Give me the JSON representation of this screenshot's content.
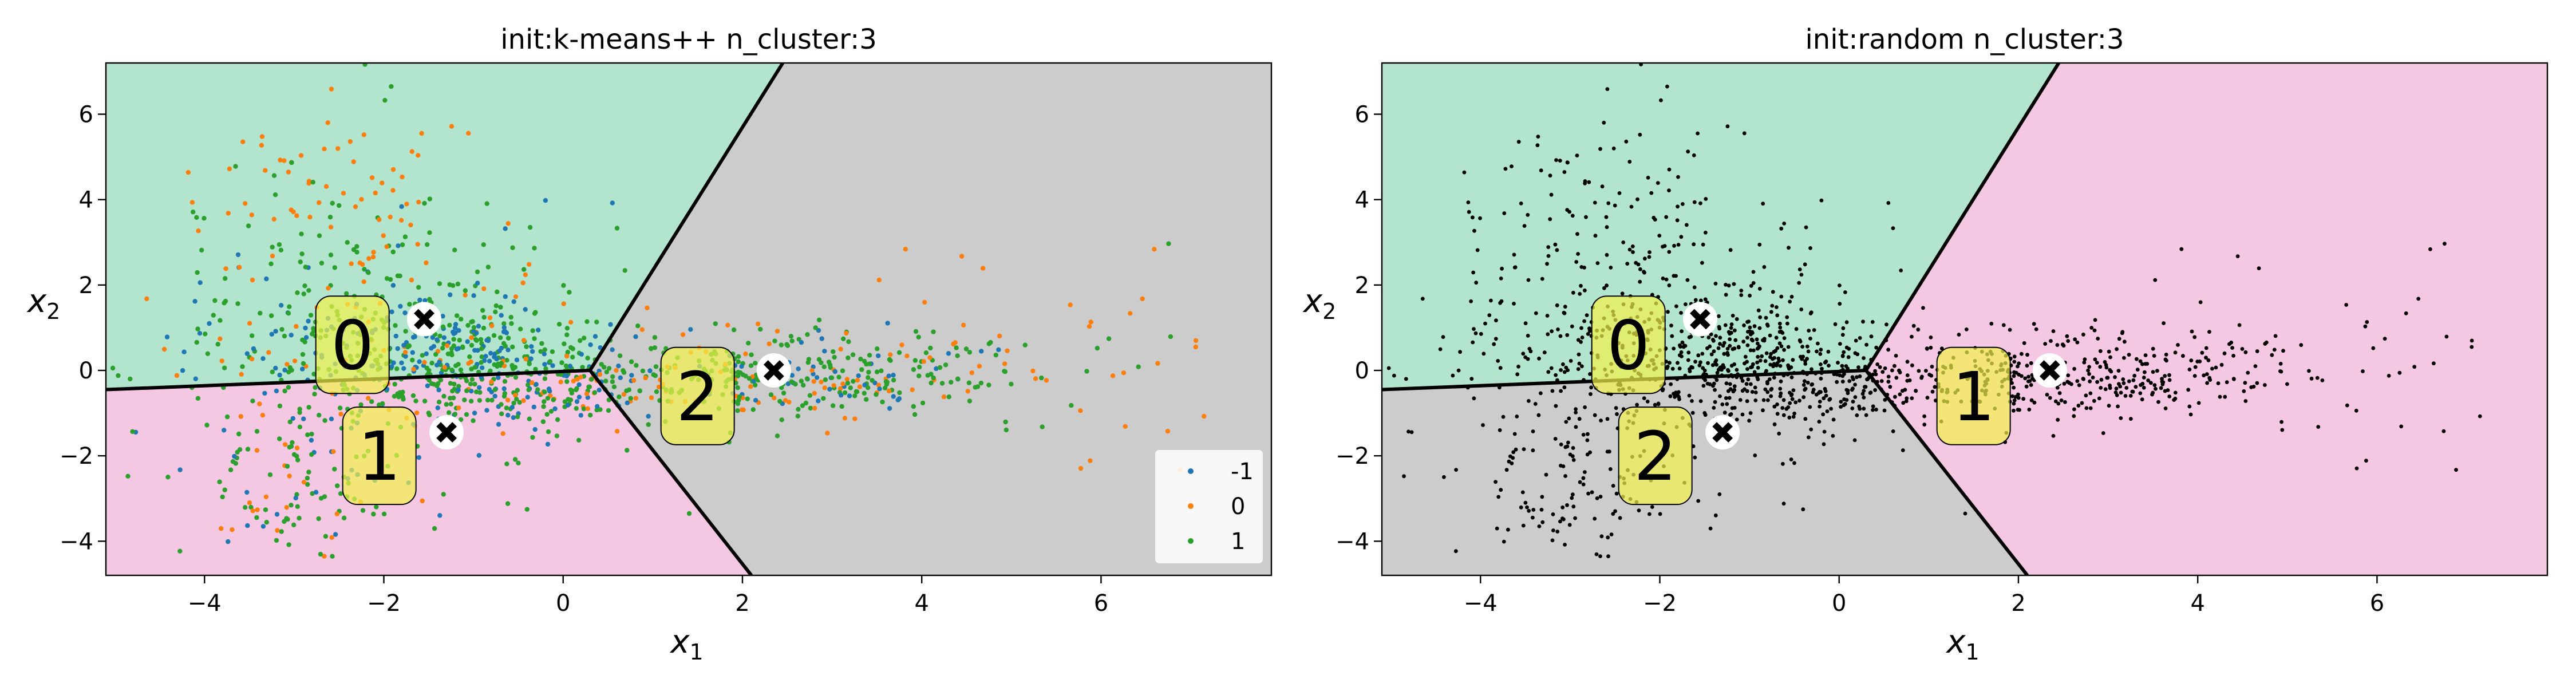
{
  "chart_data": [
    {
      "type": "scatter",
      "title": "init:k-means++  n_cluster:3",
      "xlabel": "x",
      "xlabel_sub": "1",
      "ylabel": "x",
      "ylabel_sub": "2",
      "xlim": [
        -5.1,
        7.9
      ],
      "ylim": [
        -4.8,
        7.2
      ],
      "xticks": [
        "−4",
        "−2",
        "0",
        "2",
        "4",
        "6"
      ],
      "yticks": [
        "−4",
        "−2",
        "0",
        "2",
        "4",
        "6"
      ],
      "grid": false,
      "legend_position": "lower-right",
      "legend": [
        "-1",
        "0",
        "1"
      ],
      "series_colors": {
        "-1": "#1f77b4",
        "0": "#ff7f0e",
        "1": "#2ca02c"
      },
      "region_colors": [
        "#b3e4ce",
        "#f4c7e2",
        "#cccccc"
      ],
      "boundary_vertex": [
        0.3,
        0.0
      ],
      "boundary_ends": [
        [
          -5.1,
          -0.45
        ],
        [
          2.1,
          -4.8
        ],
        [
          2.45,
          7.2
        ]
      ],
      "centroids": [
        {
          "label": "0",
          "x": -1.55,
          "y": 1.2,
          "tag_x": -2.35,
          "tag_y": 0.6
        },
        {
          "label": "1",
          "x": -1.3,
          "y": -1.45,
          "tag_x": -2.05,
          "tag_y": -2.0
        },
        {
          "label": "2",
          "x": 2.35,
          "y": 0.0,
          "tag_x": 1.5,
          "tag_y": -0.6
        }
      ],
      "point_groups": [
        {
          "cx": -2.0,
          "cy": 0.4,
          "sx": 1.3,
          "sy": 1.6,
          "n": 380
        },
        {
          "cx": -1.4,
          "cy": 0.4,
          "sx": 0.9,
          "sy": 0.7,
          "n": 320
        },
        {
          "cx": -0.2,
          "cy": -0.4,
          "sx": 0.8,
          "sy": 0.5,
          "n": 160
        },
        {
          "cx": 2.3,
          "cy": -0.1,
          "sx": 1.2,
          "sy": 0.55,
          "n": 260
        },
        {
          "cx": 3.2,
          "cy": -0.2,
          "sx": 1.0,
          "sy": 0.4,
          "n": 120
        },
        {
          "cx": 5.5,
          "cy": 0.5,
          "sx": 1.3,
          "sy": 1.6,
          "n": 45
        },
        {
          "cx": -3.0,
          "cy": -2.8,
          "sx": 0.6,
          "sy": 0.8,
          "n": 90
        },
        {
          "cx": -2.6,
          "cy": 4.0,
          "sx": 0.7,
          "sy": 1.2,
          "n": 80
        }
      ]
    },
    {
      "type": "scatter",
      "title": "init:random  n_cluster:3",
      "xlabel": "x",
      "xlabel_sub": "1",
      "ylabel": "x",
      "ylabel_sub": "2",
      "xlim": [
        -5.1,
        7.9
      ],
      "ylim": [
        -4.8,
        7.2
      ],
      "xticks": [
        "−4",
        "−2",
        "0",
        "2",
        "4",
        "6"
      ],
      "yticks": [
        "−4",
        "−2",
        "0",
        "2",
        "4",
        "6"
      ],
      "grid": false,
      "point_color": "#000000",
      "region_colors": [
        "#b3e4ce",
        "#f4c7e2",
        "#cccccc"
      ],
      "boundary_vertex": [
        0.3,
        0.0
      ],
      "boundary_ends": [
        [
          -5.1,
          -0.45
        ],
        [
          2.1,
          -4.8
        ],
        [
          2.45,
          7.2
        ]
      ],
      "centroids": [
        {
          "label": "0",
          "x": -1.55,
          "y": 1.2,
          "tag_x": -2.35,
          "tag_y": 0.6
        },
        {
          "label": "1",
          "x": 2.35,
          "y": 0.0,
          "tag_x": 1.5,
          "tag_y": -0.6
        },
        {
          "label": "2",
          "x": -1.3,
          "y": -1.45,
          "tag_x": -2.05,
          "tag_y": -2.0
        }
      ],
      "point_groups": [
        {
          "cx": -2.0,
          "cy": 0.4,
          "sx": 1.3,
          "sy": 1.6,
          "n": 380
        },
        {
          "cx": -1.4,
          "cy": 0.4,
          "sx": 0.9,
          "sy": 0.7,
          "n": 320
        },
        {
          "cx": -0.2,
          "cy": -0.4,
          "sx": 0.8,
          "sy": 0.5,
          "n": 160
        },
        {
          "cx": 2.3,
          "cy": -0.1,
          "sx": 1.2,
          "sy": 0.55,
          "n": 260
        },
        {
          "cx": 3.2,
          "cy": -0.2,
          "sx": 1.0,
          "sy": 0.4,
          "n": 120
        },
        {
          "cx": 5.5,
          "cy": 0.5,
          "sx": 1.3,
          "sy": 1.6,
          "n": 45
        },
        {
          "cx": -3.0,
          "cy": -2.8,
          "sx": 0.6,
          "sy": 0.8,
          "n": 90
        },
        {
          "cx": -2.6,
          "cy": 4.0,
          "sx": 0.7,
          "sy": 1.2,
          "n": 80
        }
      ]
    }
  ]
}
